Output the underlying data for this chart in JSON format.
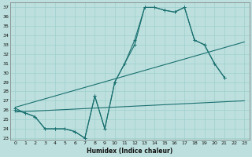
{
  "xlabel": "Humidex (Indice chaleur)",
  "bg_color": "#bde0de",
  "grid_color": "#9ecfcc",
  "line_color": "#1a7070",
  "xlim": [
    -0.5,
    23.5
  ],
  "ylim": [
    22.8,
    37.5
  ],
  "ytick_min": 23,
  "ytick_max": 37,
  "xtick_min": 0,
  "xtick_max": 23,
  "series1_x": [
    0,
    1,
    2,
    3,
    4,
    5,
    6,
    7,
    8,
    9,
    10,
    11,
    12,
    13,
    14,
    15,
    16,
    17,
    18,
    19,
    20,
    21
  ],
  "series1_y": [
    26.0,
    25.7,
    25.3,
    24.0,
    24.0,
    24.0,
    23.7,
    23.0,
    27.5,
    24.0,
    29.0,
    31.0,
    33.0,
    37.0,
    37.0,
    36.7,
    36.5,
    37.0,
    33.5,
    33.0,
    31.0,
    29.5
  ],
  "series2_x": [
    0,
    1,
    2,
    3,
    4,
    5,
    6,
    7,
    8,
    9,
    10,
    11,
    12,
    13,
    14,
    15,
    16,
    17,
    18,
    19,
    20,
    21
  ],
  "series2_y": [
    26.2,
    25.7,
    25.3,
    24.0,
    24.0,
    24.0,
    23.7,
    23.0,
    27.5,
    24.0,
    29.0,
    31.0,
    33.5,
    37.0,
    37.0,
    36.7,
    36.5,
    37.0,
    33.5,
    33.0,
    31.0,
    29.5
  ],
  "line3_x": [
    0,
    23
  ],
  "line3_y": [
    26.3,
    33.3
  ],
  "line4_x": [
    0,
    23
  ],
  "line4_y": [
    25.8,
    27.0
  ]
}
